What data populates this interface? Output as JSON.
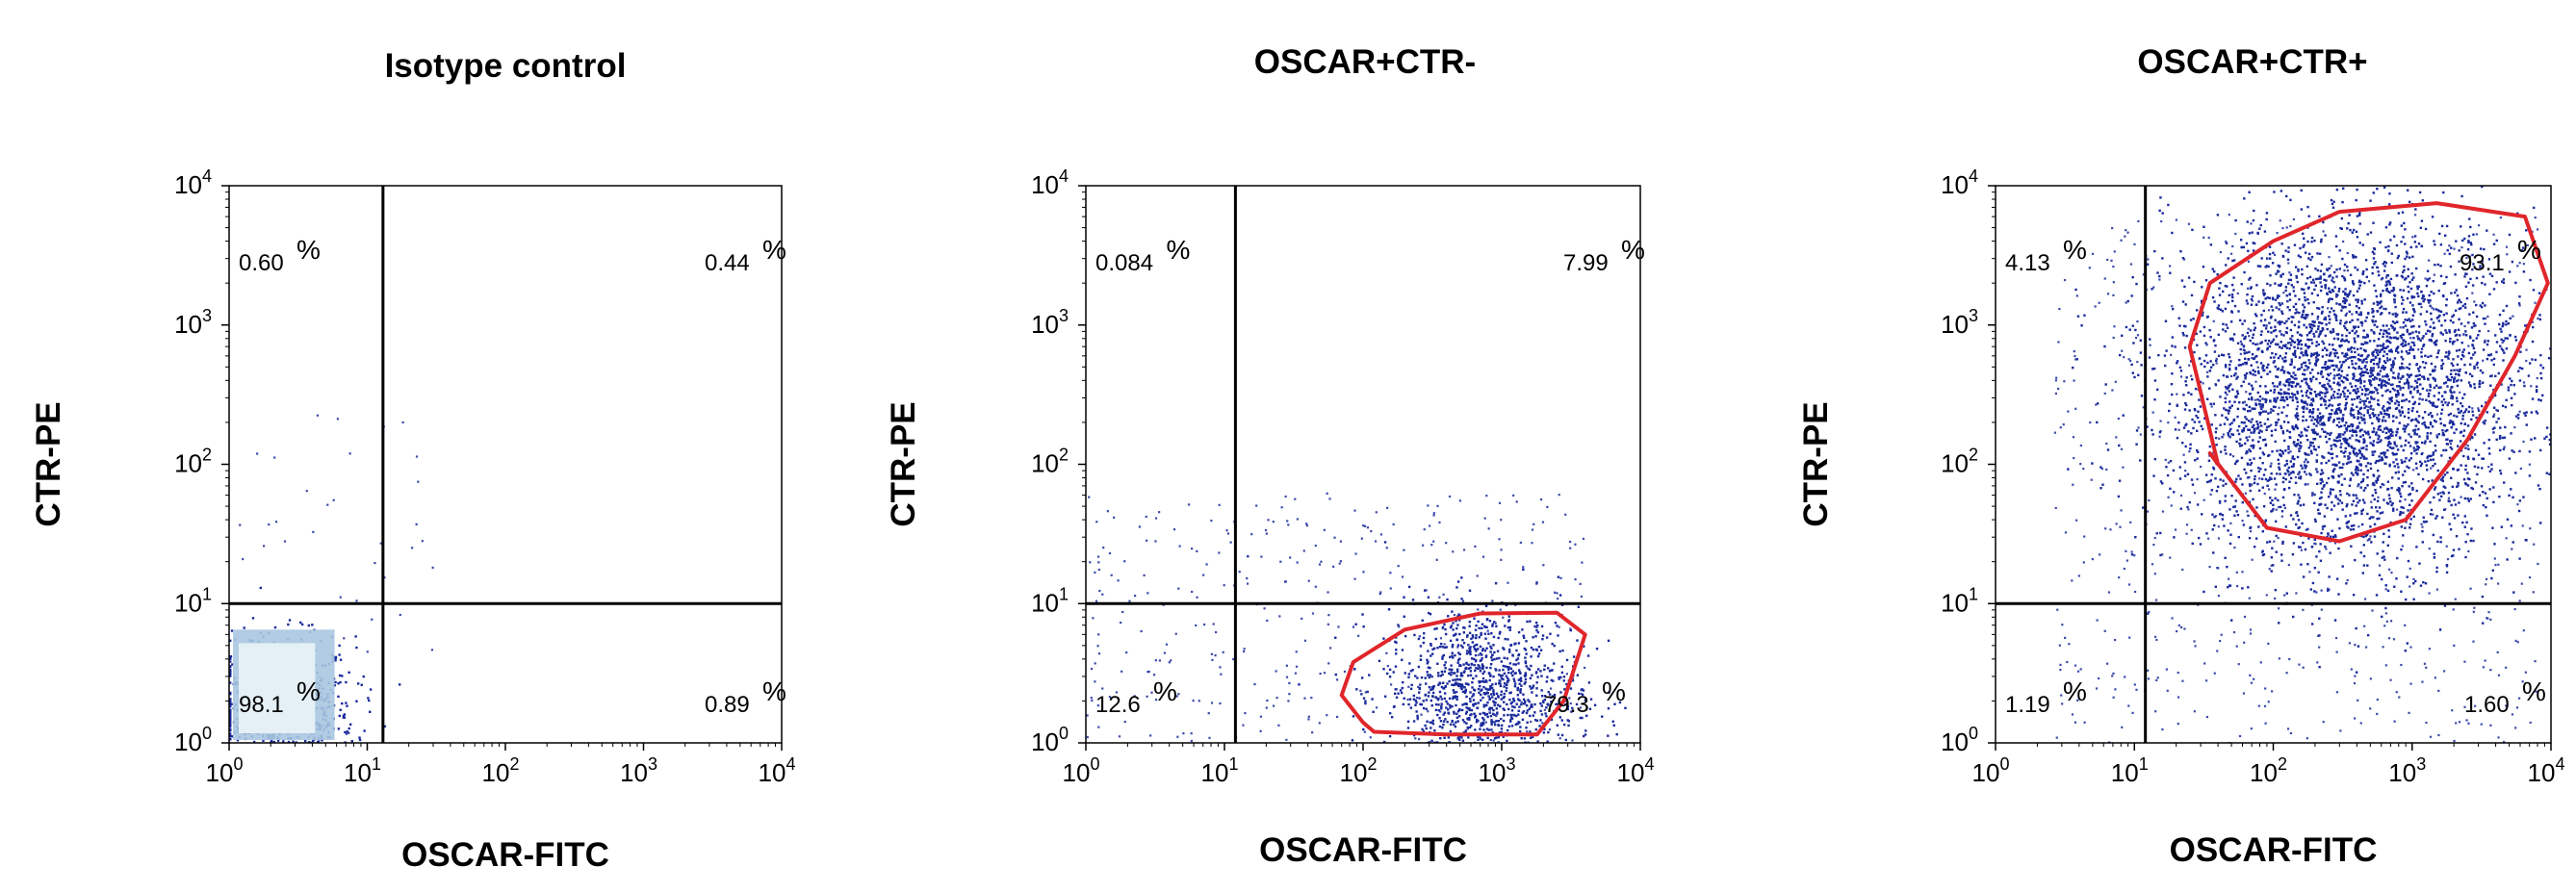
{
  "chart_data": [
    {
      "type": "scatter",
      "title": "Isotype control",
      "xlabel": "OSCAR-FITC",
      "ylabel": "CTR-PE",
      "xscale": "log",
      "yscale": "log",
      "xlim": [
        1,
        10000
      ],
      "ylim": [
        1,
        10000
      ],
      "xticks": [
        "10",
        "10",
        "10",
        "10",
        "10"
      ],
      "xtick_exponents": [
        "0",
        "1",
        "2",
        "3",
        "4"
      ],
      "yticks": [
        "10",
        "10",
        "10",
        "10",
        "10"
      ],
      "ytick_exponents": [
        "0",
        "1",
        "2",
        "3",
        "4"
      ],
      "quadrant_divider": {
        "x": 13,
        "y": 10
      },
      "quadrants": {
        "upper_left": "0.60",
        "upper_right": "0.44",
        "lower_left": "98.1",
        "lower_right": "0.89"
      },
      "percent_symbol": "%",
      "gate": null,
      "population": {
        "center": [
          2.2,
          1.6
        ],
        "spread": [
          0.28,
          0.28
        ],
        "count": 900
      }
    },
    {
      "type": "scatter",
      "title": "OSCAR+CTR-",
      "xlabel": "OSCAR-FITC",
      "ylabel": "CTR-PE",
      "xscale": "log",
      "yscale": "log",
      "xlim": [
        1,
        10000
      ],
      "ylim": [
        1,
        10000
      ],
      "xticks": [
        "10",
        "10",
        "10",
        "10",
        "10"
      ],
      "xtick_exponents": [
        "0",
        "1",
        "2",
        "3",
        "4"
      ],
      "yticks": [
        "10",
        "10",
        "10",
        "10",
        "10"
      ],
      "ytick_exponents": [
        "0",
        "1",
        "2",
        "3",
        "4"
      ],
      "quadrant_divider": {
        "x": 12,
        "y": 10
      },
      "quadrants": {
        "upper_left": "0.084",
        "upper_right": "7.99",
        "lower_left": "12.6",
        "lower_right": "79.3"
      },
      "percent_symbol": "%",
      "gate": {
        "type": "polygon",
        "color": "#e0262b"
      },
      "population": {
        "center": [
          700,
          2.4
        ],
        "spread": [
          0.35,
          0.3
        ],
        "count": 1200
      }
    },
    {
      "type": "scatter",
      "title": "OSCAR+CTR+",
      "xlabel": "OSCAR-FITC",
      "ylabel": "CTR-PE",
      "xscale": "log",
      "yscale": "log",
      "xlim": [
        1,
        10000
      ],
      "ylim": [
        1,
        10000
      ],
      "xticks": [
        "10",
        "10",
        "10",
        "10",
        "10"
      ],
      "xtick_exponents": [
        "0",
        "1",
        "2",
        "3",
        "4"
      ],
      "yticks": [
        "10",
        "10",
        "10",
        "10",
        "10"
      ],
      "ytick_exponents": [
        "0",
        "1",
        "2",
        "3",
        "4"
      ],
      "quadrant_divider": {
        "x": 12,
        "y": 10
      },
      "quadrants": {
        "upper_left": "4.13",
        "upper_right": "93.1",
        "lower_left": "1.19",
        "lower_right": "1.60"
      },
      "percent_symbol": "%",
      "gate": {
        "type": "polygon",
        "color": "#e0262b"
      },
      "population": {
        "center": [
          350,
          350
        ],
        "spread": [
          0.65,
          0.6
        ],
        "count": 4000
      }
    }
  ],
  "colors": {
    "dots": "#1a2a9c",
    "dense_light": "#a9c7e0",
    "dense_core": "#e4f0f5",
    "gate": "#e0262b",
    "axis": "#000000"
  }
}
